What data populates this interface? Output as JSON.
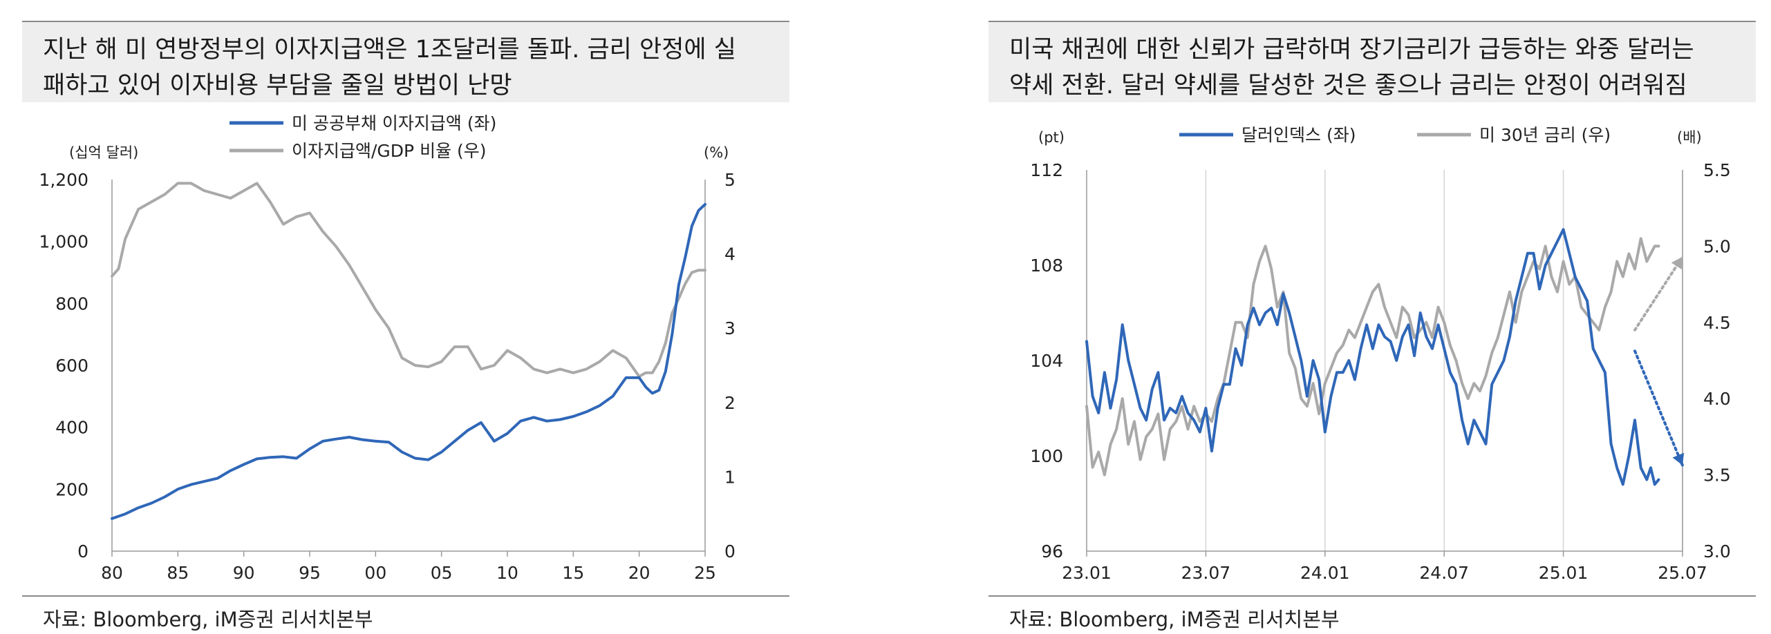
{
  "chart_data": [
    {
      "type": "line",
      "title": "지난 해 미 연방정부의 이자지급액은 1조달러를 돌파. 금리 안정에 실패하고 있어 이자비용 부담을 줄일 방법이 난망",
      "title_lines": [
        "지난 해 미 연방정부의 이자지급액은 1조달러를 돌파. 금리 안정에 실",
        "패하고 있어 이자비용 부담을 줄일 방법이 난망"
      ],
      "left_unit": "(십억 달러)",
      "right_unit": "(%)",
      "source": "자료: Bloomberg, iM증권 리서치본부",
      "xlim": [
        1980,
        2025
      ],
      "ylim_left": [
        0,
        1200
      ],
      "ylim_right": [
        0,
        5
      ],
      "x_ticks": [
        {
          "v": 1980,
          "label": "80"
        },
        {
          "v": 1985,
          "label": "85"
        },
        {
          "v": 1990,
          "label": "90"
        },
        {
          "v": 1995,
          "label": "95"
        },
        {
          "v": 2000,
          "label": "00"
        },
        {
          "v": 2005,
          "label": "05"
        },
        {
          "v": 2010,
          "label": "10"
        },
        {
          "v": 2015,
          "label": "15"
        },
        {
          "v": 2020,
          "label": "20"
        },
        {
          "v": 2025,
          "label": "25"
        }
      ],
      "y_left_ticks": [
        {
          "v": 0,
          "label": "0"
        },
        {
          "v": 200,
          "label": "200"
        },
        {
          "v": 400,
          "label": "400"
        },
        {
          "v": 600,
          "label": "600"
        },
        {
          "v": 800,
          "label": "800"
        },
        {
          "v": 1000,
          "label": "1,000"
        },
        {
          "v": 1200,
          "label": "1,200"
        }
      ],
      "y_right_ticks": [
        {
          "v": 0,
          "label": "0"
        },
        {
          "v": 1,
          "label": "1"
        },
        {
          "v": 2,
          "label": "2"
        },
        {
          "v": 3,
          "label": "3"
        },
        {
          "v": 4,
          "label": "4"
        },
        {
          "v": 5,
          "label": "5"
        }
      ],
      "series": [
        {
          "name": "미 공공부채 이자지급액 (좌)",
          "axis": "left",
          "color": "#2f67b8",
          "x": [
            1980,
            1981,
            1982,
            1983,
            1984,
            1985,
            1986,
            1987,
            1988,
            1989,
            1990,
            1991,
            1992,
            1993,
            1994,
            1995,
            1996,
            1997,
            1998,
            1999,
            2000,
            2001,
            2002,
            2003,
            2004,
            2005,
            2006,
            2007,
            2008,
            2009,
            2010,
            2011,
            2012,
            2013,
            2014,
            2015,
            2016,
            2017,
            2018,
            2019,
            2020,
            2020.5,
            2021,
            2021.5,
            2022,
            2022.5,
            2023,
            2023.5,
            2024,
            2024.5,
            2025
          ],
          "values": [
            105,
            120,
            140,
            155,
            175,
            200,
            215,
            225,
            235,
            260,
            280,
            298,
            303,
            305,
            300,
            330,
            355,
            362,
            368,
            360,
            355,
            352,
            320,
            300,
            295,
            320,
            355,
            390,
            415,
            355,
            380,
            420,
            432,
            420,
            425,
            435,
            450,
            470,
            500,
            560,
            560,
            530,
            510,
            520,
            580,
            700,
            860,
            950,
            1050,
            1100,
            1120
          ]
        },
        {
          "name": "이자지급액/GDP 비율 (우)",
          "axis": "right",
          "color": "#a9a9a9",
          "x": [
            1980,
            1980.5,
            1981,
            1982,
            1983,
            1984,
            1985,
            1986,
            1987,
            1988,
            1989,
            1990,
            1991,
            1992,
            1993,
            1994,
            1995,
            1996,
            1997,
            1998,
            1999,
            2000,
            2001,
            2002,
            2003,
            2004,
            2005,
            2006,
            2007,
            2008,
            2009,
            2010,
            2011,
            2012,
            2013,
            2014,
            2015,
            2016,
            2017,
            2018,
            2019,
            2020,
            2020.5,
            2021,
            2021.5,
            2022,
            2022.5,
            2023,
            2023.5,
            2024,
            2024.5,
            2025
          ],
          "values": [
            3.7,
            3.8,
            4.2,
            4.6,
            4.7,
            4.8,
            4.95,
            4.95,
            4.85,
            4.8,
            4.75,
            4.85,
            4.95,
            4.7,
            4.4,
            4.5,
            4.55,
            4.3,
            4.1,
            3.85,
            3.55,
            3.25,
            3.0,
            2.6,
            2.5,
            2.48,
            2.55,
            2.75,
            2.75,
            2.45,
            2.5,
            2.7,
            2.6,
            2.45,
            2.4,
            2.45,
            2.4,
            2.45,
            2.55,
            2.7,
            2.6,
            2.35,
            2.4,
            2.4,
            2.55,
            2.8,
            3.2,
            3.4,
            3.6,
            3.75,
            3.78,
            3.78
          ]
        }
      ]
    },
    {
      "type": "line",
      "title": "미국 채권에 대한 신뢰가 급락하며 장기금리가 급등하는 와중 달러는 약세 전환. 달러 약세를 달성한 것은 좋으나 금리는 안정이 어려워짐",
      "title_lines": [
        "미국 채권에 대한 신뢰가 급락하며 장기금리가 급등하는 와중 달러는",
        "약세 전환. 달러 약세를 달성한 것은 좋으나 금리는 안정이 어려워짐"
      ],
      "left_unit": "(pt)",
      "right_unit": "(배)",
      "source": "자료: Bloomberg, iM증권 리서치본부",
      "xlim": [
        0,
        30
      ],
      "ylim_left": [
        96,
        112
      ],
      "ylim_right": [
        3.0,
        5.5
      ],
      "x_ticks": [
        {
          "v": 0,
          "label": "23.01"
        },
        {
          "v": 6,
          "label": "23.07"
        },
        {
          "v": 12,
          "label": "24.01"
        },
        {
          "v": 18,
          "label": "24.07"
        },
        {
          "v": 24,
          "label": "25.01"
        },
        {
          "v": 30,
          "label": "25.07"
        }
      ],
      "y_left_ticks": [
        {
          "v": 96,
          "label": "96"
        },
        {
          "v": 100,
          "label": "100"
        },
        {
          "v": 104,
          "label": "104"
        },
        {
          "v": 108,
          "label": "108"
        },
        {
          "v": 112,
          "label": "112"
        }
      ],
      "y_right_ticks": [
        {
          "v": 3.0,
          "label": "3.0"
        },
        {
          "v": 3.5,
          "label": "3.5"
        },
        {
          "v": 4.0,
          "label": "4.0"
        },
        {
          "v": 4.5,
          "label": "4.5"
        },
        {
          "v": 5.0,
          "label": "5.0"
        },
        {
          "v": 5.5,
          "label": "5.5"
        }
      ],
      "series": [
        {
          "name": "달러인덱스 (좌)",
          "axis": "left",
          "color": "#2f67b8",
          "x": [
            0,
            0.3,
            0.6,
            0.9,
            1.2,
            1.5,
            1.8,
            2.1,
            2.4,
            2.7,
            3.0,
            3.3,
            3.6,
            3.9,
            4.2,
            4.5,
            4.8,
            5.1,
            5.4,
            5.7,
            6.0,
            6.3,
            6.6,
            6.9,
            7.2,
            7.5,
            7.8,
            8.1,
            8.4,
            8.7,
            9.0,
            9.3,
            9.6,
            9.9,
            10.2,
            10.5,
            10.8,
            11.1,
            11.4,
            11.7,
            12.0,
            12.3,
            12.6,
            12.9,
            13.2,
            13.5,
            13.8,
            14.1,
            14.4,
            14.7,
            15.0,
            15.3,
            15.6,
            15.9,
            16.2,
            16.5,
            16.8,
            17.1,
            17.4,
            17.7,
            18.0,
            18.3,
            18.6,
            18.9,
            19.2,
            19.5,
            19.8,
            20.1,
            20.4,
            20.7,
            21.0,
            21.3,
            21.6,
            21.9,
            22.2,
            22.5,
            22.8,
            23.1,
            23.4,
            23.7,
            24.0,
            24.3,
            24.6,
            24.9,
            25.2,
            25.5,
            25.8,
            26.1,
            26.4,
            26.7,
            27.0,
            27.3,
            27.6,
            27.9,
            28.2,
            28.4,
            28.6,
            28.8
          ],
          "values": [
            104.8,
            102.5,
            101.8,
            103.5,
            102.0,
            103.2,
            105.5,
            104.0,
            103.0,
            102.0,
            101.5,
            102.8,
            103.5,
            101.5,
            102.0,
            101.8,
            102.5,
            101.8,
            101.5,
            101.0,
            102.0,
            100.2,
            102.0,
            103.0,
            103.0,
            104.5,
            103.8,
            105.5,
            106.2,
            105.5,
            106.0,
            106.2,
            105.5,
            106.8,
            106.0,
            105.0,
            104.0,
            102.5,
            104.0,
            103.2,
            101.0,
            102.5,
            103.5,
            103.5,
            104.0,
            103.2,
            104.5,
            105.5,
            104.5,
            105.5,
            105.0,
            104.8,
            104.0,
            105.0,
            105.5,
            104.2,
            106.0,
            105.0,
            104.5,
            105.5,
            104.5,
            103.5,
            103.0,
            101.5,
            100.5,
            101.5,
            101.0,
            100.5,
            103.0,
            103.5,
            104.0,
            105.0,
            106.5,
            107.5,
            108.5,
            108.5,
            107.0,
            108.0,
            108.5,
            109.0,
            109.5,
            108.5,
            107.5,
            107.0,
            106.5,
            104.5,
            104.0,
            103.5,
            100.5,
            99.5,
            98.8,
            100.0,
            101.5,
            99.5,
            99.0,
            99.5,
            98.8,
            99.0
          ]
        },
        {
          "name": "미 30년 금리 (우)",
          "axis": "right",
          "color": "#a9a9a9",
          "x": [
            0,
            0.3,
            0.6,
            0.9,
            1.2,
            1.5,
            1.8,
            2.1,
            2.4,
            2.7,
            3.0,
            3.3,
            3.6,
            3.9,
            4.2,
            4.5,
            4.8,
            5.1,
            5.4,
            5.7,
            6.0,
            6.3,
            6.6,
            6.9,
            7.2,
            7.5,
            7.8,
            8.1,
            8.4,
            8.7,
            9.0,
            9.3,
            9.6,
            9.9,
            10.2,
            10.5,
            10.8,
            11.1,
            11.4,
            11.7,
            12.0,
            12.3,
            12.6,
            12.9,
            13.2,
            13.5,
            13.8,
            14.1,
            14.4,
            14.7,
            15.0,
            15.3,
            15.6,
            15.9,
            16.2,
            16.5,
            16.8,
            17.1,
            17.4,
            17.7,
            18.0,
            18.3,
            18.6,
            18.9,
            19.2,
            19.5,
            19.8,
            20.1,
            20.4,
            20.7,
            21.0,
            21.3,
            21.6,
            21.9,
            22.2,
            22.5,
            22.8,
            23.1,
            23.4,
            23.7,
            24.0,
            24.3,
            24.6,
            24.9,
            25.2,
            25.5,
            25.8,
            26.1,
            26.4,
            26.7,
            27.0,
            27.3,
            27.6,
            27.9,
            28.2,
            28.4,
            28.6,
            28.8
          ],
          "values": [
            3.95,
            3.55,
            3.65,
            3.5,
            3.7,
            3.8,
            4.0,
            3.7,
            3.85,
            3.6,
            3.75,
            3.8,
            3.9,
            3.6,
            3.8,
            3.85,
            3.95,
            3.8,
            3.95,
            3.85,
            3.9,
            3.85,
            4.0,
            4.1,
            4.3,
            4.5,
            4.5,
            4.4,
            4.75,
            4.9,
            5.0,
            4.85,
            4.6,
            4.7,
            4.3,
            4.2,
            4.0,
            3.95,
            4.1,
            3.9,
            4.1,
            4.2,
            4.3,
            4.35,
            4.45,
            4.4,
            4.5,
            4.6,
            4.7,
            4.75,
            4.6,
            4.5,
            4.4,
            4.6,
            4.55,
            4.4,
            4.45,
            4.5,
            4.4,
            4.6,
            4.5,
            4.35,
            4.25,
            4.1,
            4.0,
            4.1,
            4.05,
            4.15,
            4.3,
            4.4,
            4.55,
            4.7,
            4.5,
            4.7,
            4.8,
            4.9,
            4.85,
            5.0,
            4.8,
            4.7,
            4.9,
            4.75,
            4.8,
            4.6,
            4.55,
            4.5,
            4.45,
            4.6,
            4.7,
            4.9,
            4.8,
            4.95,
            4.85,
            5.05,
            4.9,
            4.95,
            5.0,
            5.0
          ]
        }
      ],
      "arrows": [
        {
          "series": "달러인덱스 (좌)",
          "axis": "left",
          "from": [
            27.6,
            104.4
          ],
          "to": [
            30.0,
            99.6
          ],
          "color": "#2f67b8"
        },
        {
          "series": "미 30년 금리 (우)",
          "axis": "right",
          "from": [
            27.6,
            4.45
          ],
          "to": [
            30.0,
            4.93
          ],
          "color": "#a9a9a9"
        }
      ]
    }
  ]
}
